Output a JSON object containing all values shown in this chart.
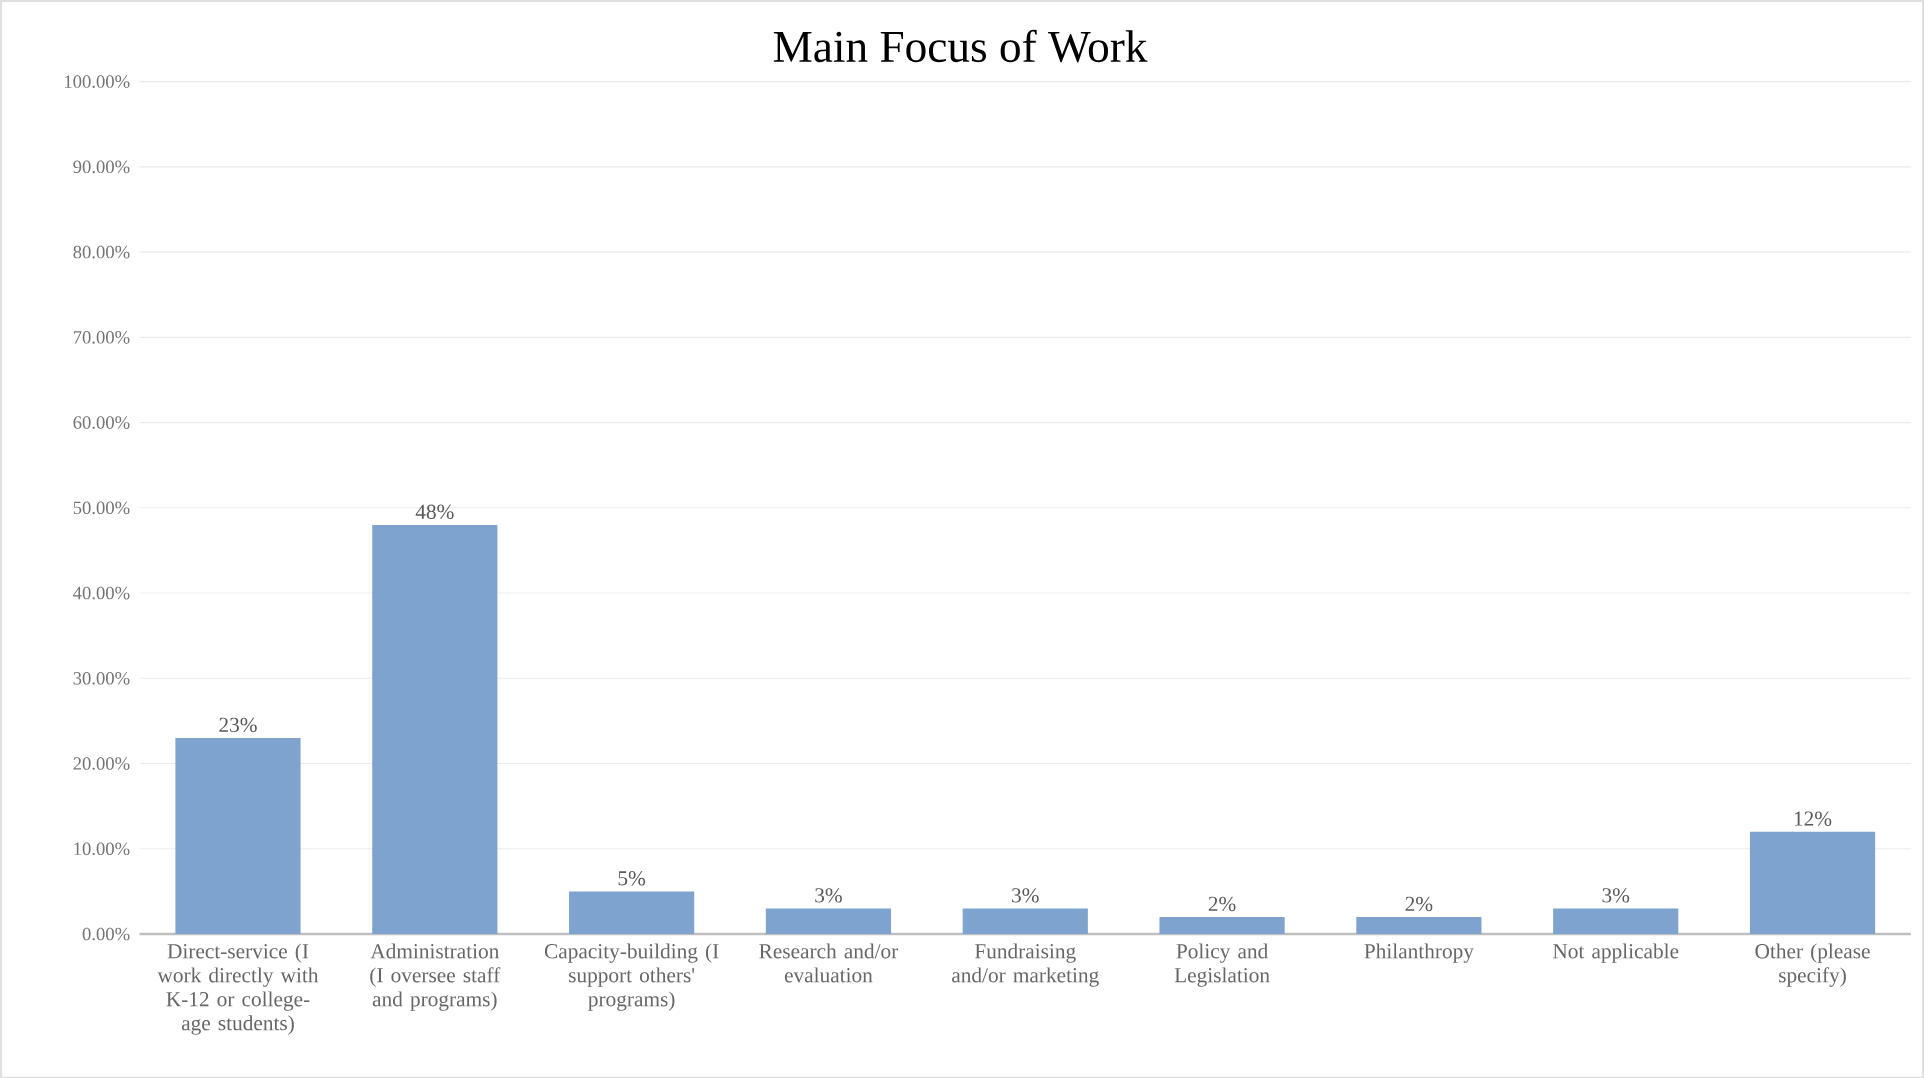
{
  "chart_data": {
    "type": "bar",
    "title": "Main Focus of Work",
    "categories": [
      "Direct-service (I work directly with K-12 or college-age students)",
      "Administration (I oversee staff and programs)",
      "Capacity-building (I support others' programs)",
      "Research and/or evaluation",
      "Fundraising and/or marketing",
      "Policy and Legislation",
      "Philanthropy",
      "Not applicable",
      "Other (please specify)"
    ],
    "values": [
      23,
      48,
      5,
      3,
      3,
      2,
      2,
      3,
      12
    ],
    "value_labels": [
      "23%",
      "48%",
      "5%",
      "3%",
      "3%",
      "2%",
      "2%",
      "3%",
      "12%"
    ],
    "color": "#7fa3cf",
    "ylim": [
      0,
      100
    ],
    "yticks": [
      {
        "value": 0,
        "label": "0.00%"
      },
      {
        "value": 10,
        "label": "10.00%"
      },
      {
        "value": 20,
        "label": "20.00%"
      },
      {
        "value": 30,
        "label": "30.00%"
      },
      {
        "value": 40,
        "label": "40.00%"
      },
      {
        "value": 50,
        "label": "50.00%"
      },
      {
        "value": 60,
        "label": "60.00%"
      },
      {
        "value": 70,
        "label": "70.00%"
      },
      {
        "value": 80,
        "label": "80.00%"
      },
      {
        "value": 90,
        "label": "90.00%"
      },
      {
        "value": 100,
        "label": "100.00%"
      }
    ],
    "grid": "y"
  }
}
